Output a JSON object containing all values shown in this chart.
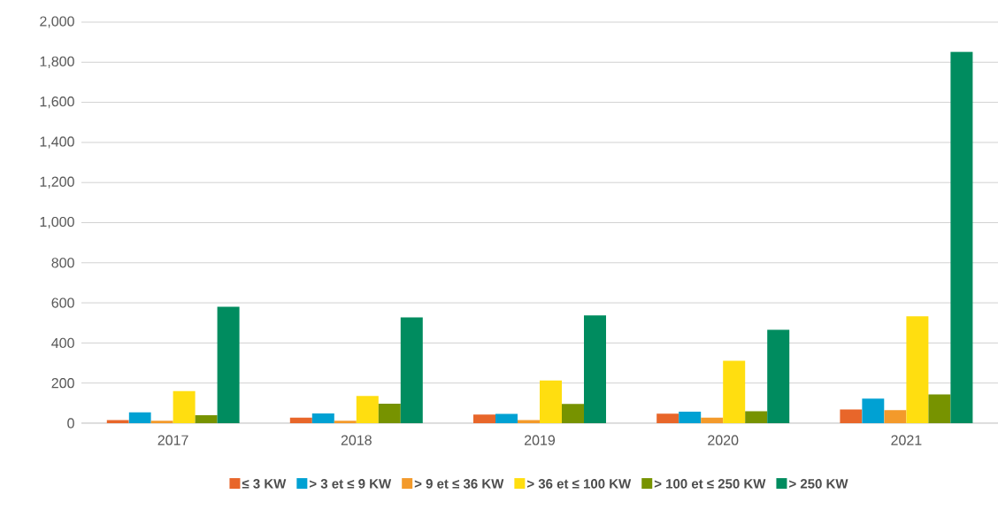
{
  "chart_data": {
    "type": "bar",
    "categories": [
      "2017",
      "2018",
      "2019",
      "2020",
      "2021"
    ],
    "series": [
      {
        "name": "≤ 3 KW",
        "color": "#e8662a",
        "values": [
          15,
          27,
          43,
          47,
          68
        ]
      },
      {
        "name": "> 3 et ≤ 9 KW",
        "color": "#00a1d3",
        "values": [
          54,
          48,
          46,
          57,
          123
        ]
      },
      {
        "name": "> 9 et ≤ 36 KW",
        "color": "#f39a2b",
        "values": [
          12,
          12,
          15,
          27,
          65
        ]
      },
      {
        "name": "> 36 et ≤ 100 KW",
        "color": "#ffde10",
        "values": [
          160,
          136,
          213,
          311,
          533
        ]
      },
      {
        "name": "> 100 et ≤ 250 KW",
        "color": "#779300",
        "values": [
          40,
          97,
          96,
          59,
          143
        ]
      },
      {
        "name": "> 250 KW",
        "color": "#008c5f",
        "values": [
          580,
          528,
          537,
          466,
          1852
        ]
      }
    ],
    "ylim": [
      0,
      2000
    ],
    "yticks": [
      {
        "value": 0,
        "label": "0"
      },
      {
        "value": 200,
        "label": "200"
      },
      {
        "value": 400,
        "label": "400"
      },
      {
        "value": 600,
        "label": "600"
      },
      {
        "value": 800,
        "label": "800"
      },
      {
        "value": 1000,
        "label": "1,000"
      },
      {
        "value": 1200,
        "label": "1,200"
      },
      {
        "value": 1400,
        "label": "1,400"
      },
      {
        "value": 1600,
        "label": "1,600"
      },
      {
        "value": 1800,
        "label": "1,800"
      },
      {
        "value": 2000,
        "label": "2,000"
      }
    ],
    "grid": "y",
    "legend": "bottom"
  }
}
